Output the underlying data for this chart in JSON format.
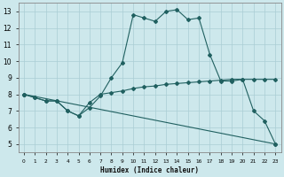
{
  "xlabel": "Humidex (Indice chaleur)",
  "xlim": [
    -0.5,
    23.5
  ],
  "ylim": [
    4.5,
    13.5
  ],
  "xticks": [
    0,
    1,
    2,
    3,
    4,
    5,
    6,
    7,
    8,
    9,
    10,
    11,
    12,
    13,
    14,
    15,
    16,
    17,
    18,
    19,
    20,
    21,
    22,
    23
  ],
  "yticks": [
    5,
    6,
    7,
    8,
    9,
    10,
    11,
    12,
    13
  ],
  "bg_color": "#cde8ec",
  "line_color": "#206060",
  "grid_color": "#aacdd4",
  "line1_x": [
    0,
    1,
    2,
    3,
    4,
    5,
    6,
    7,
    8,
    9,
    10,
    11,
    12,
    13,
    14,
    15,
    16,
    17,
    18,
    19,
    20,
    21,
    22,
    23
  ],
  "line1_y": [
    8.0,
    7.8,
    7.6,
    7.6,
    7.0,
    6.7,
    7.2,
    7.9,
    9.0,
    9.9,
    12.8,
    12.6,
    12.4,
    13.0,
    13.1,
    12.5,
    12.6,
    10.4,
    8.8,
    8.8,
    8.9,
    7.0,
    6.4,
    5.0
  ],
  "line2_x": [
    0,
    1,
    2,
    3,
    4,
    5,
    6,
    7,
    8,
    9,
    10,
    11,
    12,
    13,
    14,
    15,
    16,
    17,
    18,
    19,
    20,
    21,
    22,
    23
  ],
  "line2_y": [
    8.0,
    7.8,
    7.6,
    7.6,
    7.0,
    6.7,
    7.5,
    8.0,
    8.1,
    8.2,
    8.35,
    8.45,
    8.5,
    8.6,
    8.65,
    8.7,
    8.75,
    8.8,
    8.85,
    8.9,
    8.9,
    8.9,
    8.9,
    8.9
  ],
  "line3_x": [
    0,
    23
  ],
  "line3_y": [
    8.0,
    5.0
  ]
}
